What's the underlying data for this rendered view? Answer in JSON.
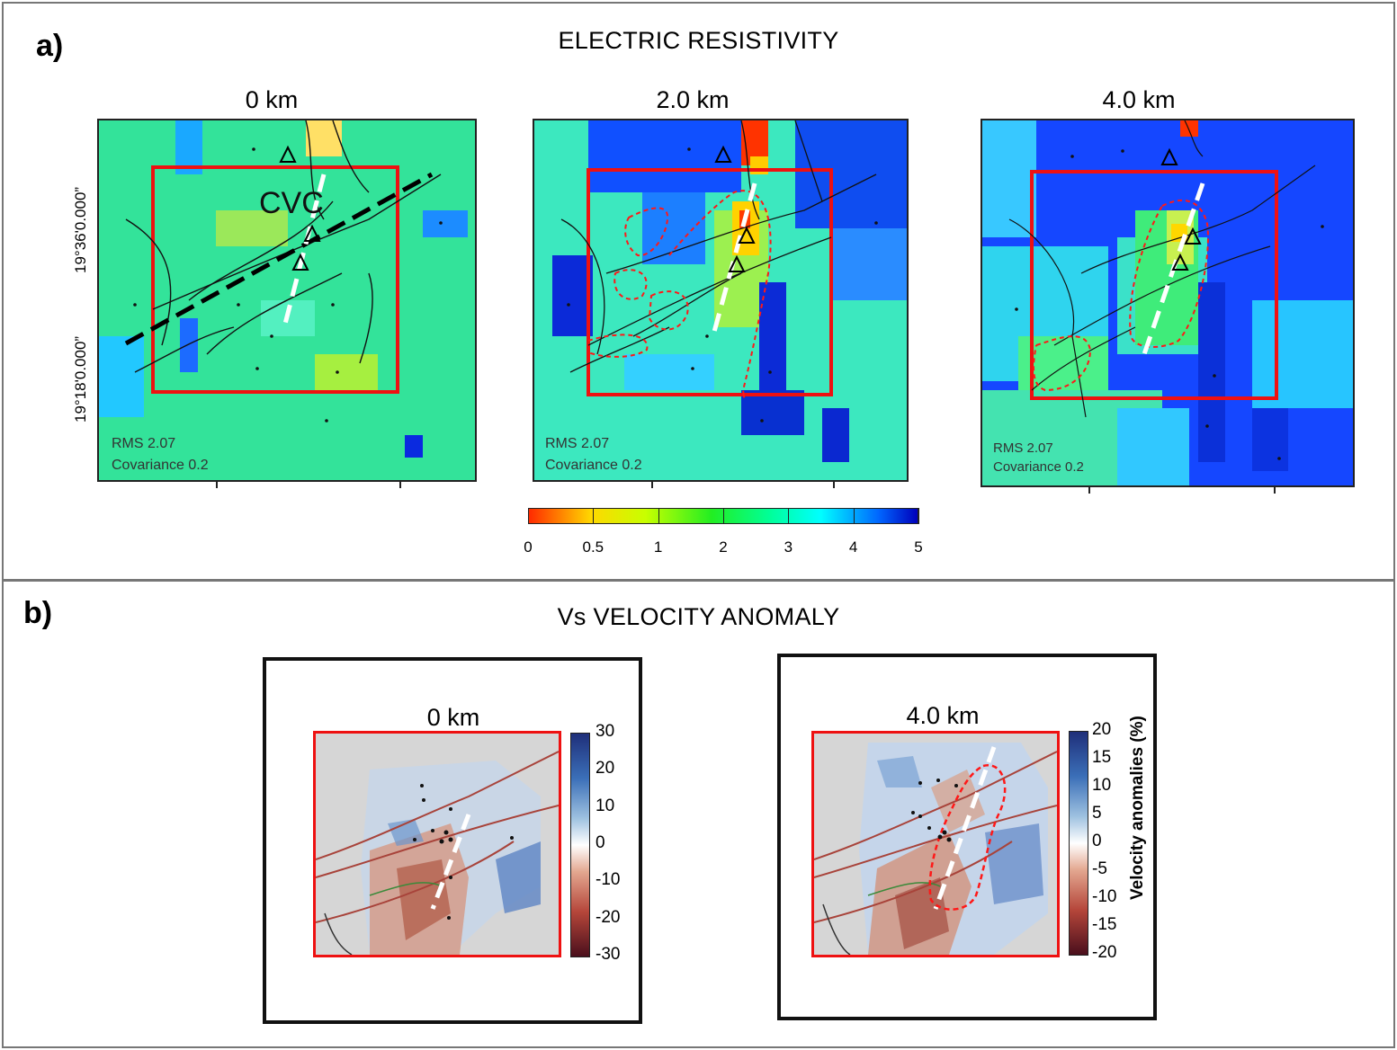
{
  "panel_a": {
    "letter": "a)",
    "title": "ELECTRIC RESISTIVITY",
    "maps": [
      {
        "depth": "0 km",
        "rms": "RMS 2.07",
        "cov": "Covariance 0.2"
      },
      {
        "depth": "2.0 km",
        "rms": "RMS 2.07",
        "cov": "Covariance 0.2"
      },
      {
        "depth": "4.0 km",
        "rms": "RMS 2.07",
        "cov": "Covariance 0.2"
      }
    ],
    "y_ticks": [
      "19°36'0.000”",
      "19°18'0.000”"
    ],
    "annotation": "CVC",
    "colorbar": {
      "ticks": [
        "0",
        "0.5",
        "1",
        "2",
        "3",
        "4",
        "5"
      ],
      "colors": [
        "#ff2a00",
        "#ffd800",
        "#c8ff00",
        "#22ee22",
        "#00ff99",
        "#00ffff",
        "#0055ff",
        "#0000bb"
      ]
    }
  },
  "panel_b": {
    "letter": "b)",
    "title": "Vs VELOCITY ANOMALY",
    "maps": [
      {
        "depth": "0 km",
        "ticks": [
          "30",
          "20",
          "10",
          "0",
          "-10",
          "-20",
          "-30"
        ]
      },
      {
        "depth": "4.0 km",
        "ticks": [
          "20",
          "15",
          "10",
          "5",
          "0",
          "-5",
          "-10",
          "-15",
          "-20"
        ]
      }
    ],
    "colorbar_label": "Velocity anomalies (%)",
    "colorbar_colors": [
      "#1f2f7a",
      "#3b6fb8",
      "#9ec1e0",
      "#ffffff",
      "#e3a790",
      "#b5463a",
      "#4a0f1c"
    ]
  }
}
